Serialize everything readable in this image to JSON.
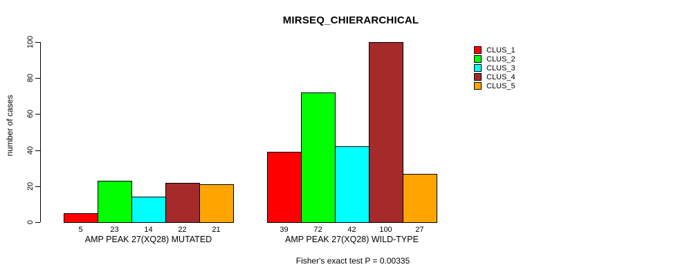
{
  "title": "MIRSEQ_CHIERARCHICAL",
  "chart_data": {
    "type": "bar",
    "title": "MIRSEQ_CHIERARCHICAL",
    "ylabel": "number of cases",
    "xlabel": "",
    "ylim": [
      0,
      100
    ],
    "yticks": [
      0,
      20,
      40,
      60,
      80,
      100
    ],
    "grid": false,
    "legend_position": "right",
    "series_names": [
      "CLUS_1",
      "CLUS_2",
      "CLUS_3",
      "CLUS_4",
      "CLUS_5"
    ],
    "colors": [
      "#FF0000",
      "#00FF00",
      "#00FFFF",
      "#A52A2A",
      "#FFA500"
    ],
    "bar_border_color": "#000000",
    "groups": [
      {
        "label": "AMP PEAK 27(XQ28) MUTATED",
        "values": [
          5,
          23,
          14,
          22,
          21
        ]
      },
      {
        "label": "AMP PEAK 27(XQ28) WILD-TYPE",
        "values": [
          39,
          72,
          42,
          100,
          27
        ]
      }
    ],
    "footnote": "Fisher's exact test P = 0.00335"
  }
}
